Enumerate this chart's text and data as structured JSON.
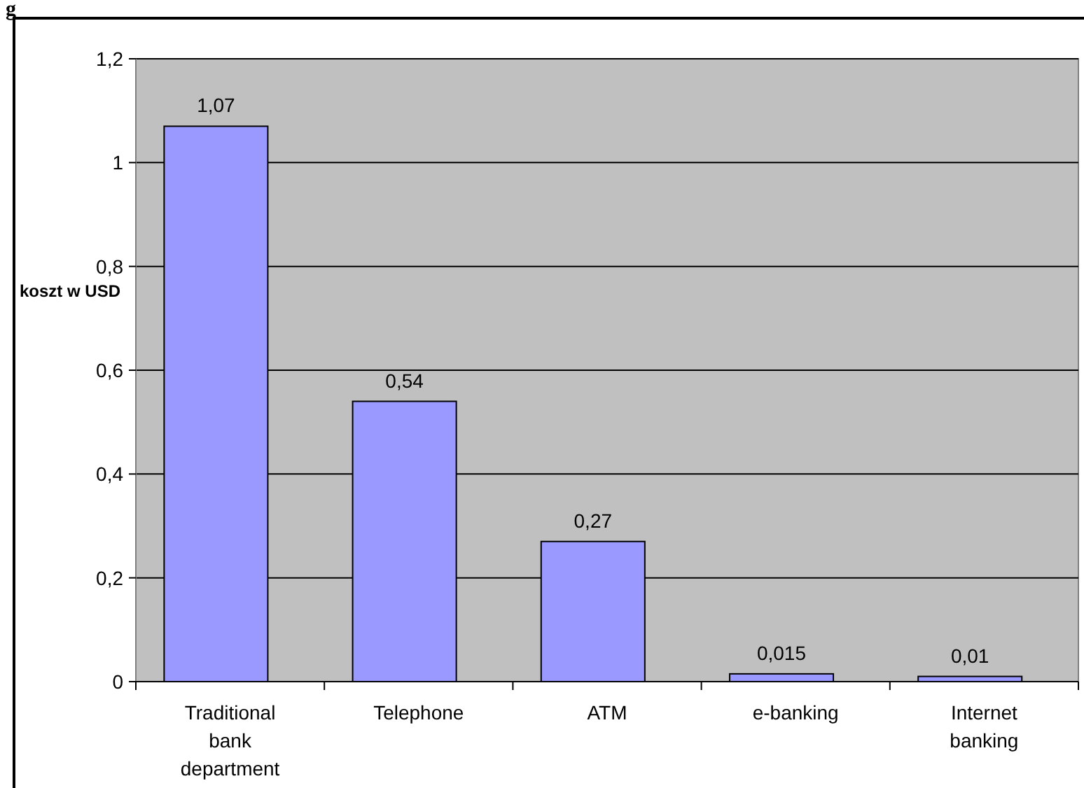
{
  "chart_data": {
    "type": "bar",
    "title": "g",
    "ylabel": "koszt w USD",
    "categories": [
      "Traditional bank department",
      "Telephone",
      "ATM",
      "e-banking",
      "Internet banking"
    ],
    "values": [
      1.07,
      0.54,
      0.27,
      0.015,
      0.01
    ],
    "color": "#9999ff",
    "ylim": [
      0,
      1.2
    ],
    "yticks": [
      0,
      {
        "value": 0.2,
        "label": "0,2"
      },
      {
        "value": 0.4,
        "label": "0,4"
      },
      {
        "value": 0.6,
        "label": "0,6"
      },
      {
        "value": 0.8,
        "label": "0,8"
      },
      1,
      {
        "value": 1.2,
        "label": "1,2"
      }
    ],
    "grid": "y",
    "value_labels": [
      "1,07",
      "0,54",
      "0,27",
      "0,015",
      "0,01"
    ]
  }
}
